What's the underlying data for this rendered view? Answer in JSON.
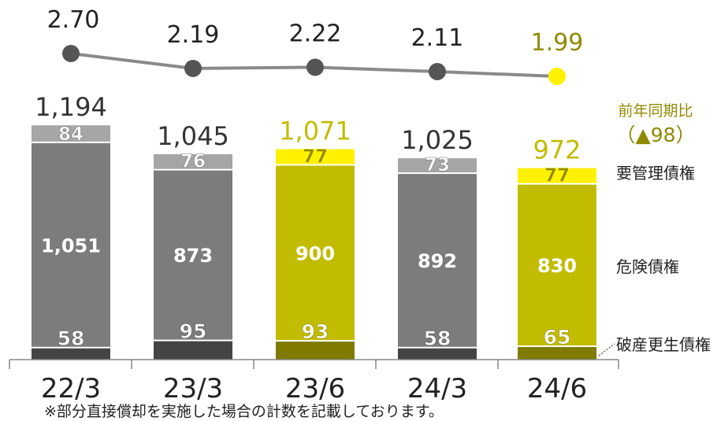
{
  "chart_data": {
    "type": "bar",
    "stacked": true,
    "categories": [
      "22/3",
      "23/3",
      "23/6",
      "24/3",
      "24/6"
    ],
    "highlight": [
      false,
      false,
      true,
      false,
      true
    ],
    "series": [
      {
        "name": "破産更生債権",
        "values": [
          58,
          95,
          93,
          58,
          65
        ]
      },
      {
        "name": "危険債権",
        "values": [
          1051,
          873,
          900,
          892,
          830
        ]
      },
      {
        "name": "要管理債権",
        "values": [
          84,
          76,
          77,
          73,
          77
        ]
      }
    ],
    "value_labels": {
      "破産更生債権": [
        "58",
        "95",
        "93",
        "58",
        "65"
      ],
      "危険債権": [
        "1,051",
        "873",
        "900",
        "892",
        "830"
      ],
      "要管理債権": [
        "84",
        "76",
        "77",
        "73",
        "77"
      ]
    },
    "totals": [
      1194,
      1045,
      1071,
      1025,
      972
    ],
    "total_labels": [
      "1,194",
      "1,045",
      "1,071",
      "1,025",
      "972"
    ],
    "line": {
      "values": [
        2.7,
        2.19,
        2.22,
        2.11,
        1.99
      ],
      "labels": [
        "2.70",
        "2.19",
        "2.22",
        "2.11",
        "1.99"
      ]
    },
    "yoy": {
      "label": "前年同期比",
      "value": "（▲98）"
    },
    "colors": {
      "gray_total": "#3a3a3a",
      "gray_bottom": "#444444",
      "gray_mid": "#7c7c7c",
      "gray_top": "#a6a6a6",
      "olive_bottom": "#7e7b00",
      "olive_mid": "#c2bc00",
      "olive_top": "#fff100",
      "olive_text": "#8f8a00",
      "line_gray": "#8a8a8a",
      "dot_gray": "#555555",
      "dot_yellow": "#fff100",
      "axis": "#888888"
    }
  },
  "footnote": "※部分直接償却を実施した場合の計数を記載しております。"
}
